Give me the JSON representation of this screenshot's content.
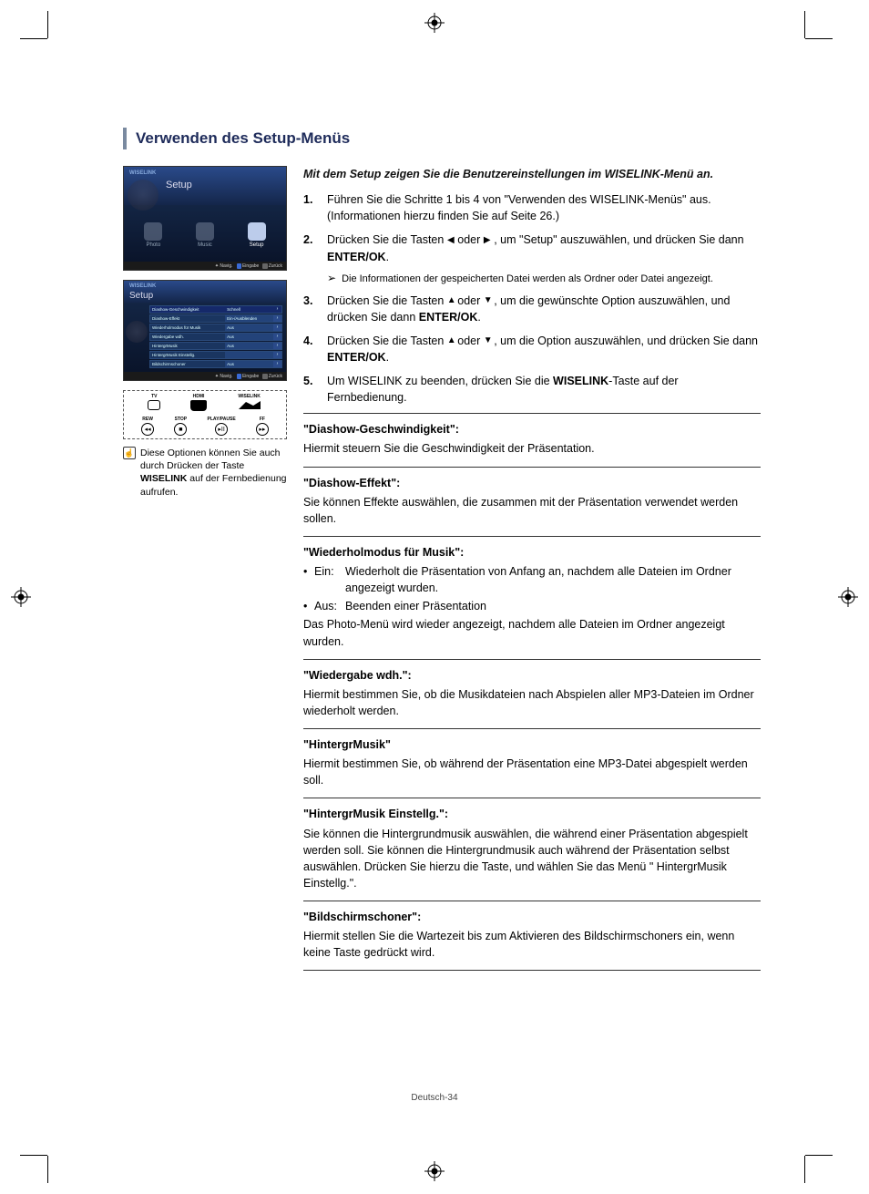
{
  "layout": {
    "crop_color": "#000000",
    "accent_color": "#7a8aa0",
    "title_color": "#1e2b5a"
  },
  "page": {
    "title": "Verwenden des Setup-Menüs",
    "footer": "Deutsch-34"
  },
  "screenshots": {
    "brand": "WISELINK",
    "ss1": {
      "header": "Setup",
      "icons": [
        "Photo",
        "Music",
        "Setup"
      ],
      "footer": [
        "Navig.",
        "Eingabe",
        "Zurück"
      ]
    },
    "ss2": {
      "header": "Setup",
      "rows": [
        {
          "l": "Diashow-Geschwindigkeit",
          "v": "Schnell"
        },
        {
          "l": "Diashow-Effekt",
          "v": "Ein-/Ausblenden"
        },
        {
          "l": "Wiederholmodus für Musik",
          "v": "Aus"
        },
        {
          "l": "Wiedergabe wdh.",
          "v": "Aus"
        },
        {
          "l": "HintergrMusik",
          "v": "Aus"
        },
        {
          "l": "HintergrMusik Einstellg.",
          "v": ""
        },
        {
          "l": "Bildschirmschoner",
          "v": "Aus"
        }
      ],
      "footer": [
        "Navig.",
        "Eingabe",
        "Zurück"
      ]
    }
  },
  "remote": {
    "row1": [
      "TV",
      "HDMI",
      "WISELINK"
    ],
    "row2": [
      {
        "l": "REW",
        "g": "◂◂"
      },
      {
        "l": "STOP",
        "g": "■"
      },
      {
        "l": "PLAY/PAUSE",
        "g": "▸II"
      },
      {
        "l": "FF",
        "g": "▸▸"
      }
    ]
  },
  "note": {
    "text_pre": "Diese Optionen können Sie auch durch Drücken der Taste ",
    "bold": "WISELINK",
    "text_post": " auf der Fernbedienung aufrufen."
  },
  "intro": "Mit dem Setup zeigen Sie die Benutzereinstellungen im WISELINK-Menü an.",
  "steps": [
    {
      "num": "1.",
      "parts": [
        {
          "t": "text",
          "v": "Führen Sie die Schritte 1 bis 4 von \"Verwenden des WISELINK-Menüs\" aus. (Informationen hierzu finden Sie auf Seite 26.)"
        }
      ]
    },
    {
      "num": "2.",
      "parts": [
        {
          "t": "text",
          "v": "Drücken Sie die Tasten "
        },
        {
          "t": "arrow",
          "v": "◀"
        },
        {
          "t": "text",
          "v": " oder "
        },
        {
          "t": "arrow",
          "v": "▶"
        },
        {
          "t": "text",
          "v": " , um \"Setup\" auszuwählen, und drücken Sie dann "
        },
        {
          "t": "bold",
          "v": "ENTER/OK"
        },
        {
          "t": "text",
          "v": "."
        }
      ],
      "subnote": "Die Informationen der gespeicherten Datei werden als Ordner oder Datei angezeigt."
    },
    {
      "num": "3.",
      "parts": [
        {
          "t": "text",
          "v": "Drücken Sie die Tasten "
        },
        {
          "t": "arrow",
          "v": "▲"
        },
        {
          "t": "text",
          "v": " oder "
        },
        {
          "t": "arrow",
          "v": "▼"
        },
        {
          "t": "text",
          "v": " , um die gewünschte Option auszuwählen, und drücken Sie dann "
        },
        {
          "t": "bold",
          "v": "ENTER/OK"
        },
        {
          "t": "text",
          "v": "."
        }
      ]
    },
    {
      "num": "4.",
      "parts": [
        {
          "t": "text",
          "v": "Drücken Sie die Tasten "
        },
        {
          "t": "arrow",
          "v": "▲"
        },
        {
          "t": "text",
          "v": " oder "
        },
        {
          "t": "arrow",
          "v": "▼"
        },
        {
          "t": "text",
          "v": " , um die Option auszuwählen, und drücken Sie dann "
        },
        {
          "t": "bold",
          "v": "ENTER/OK"
        },
        {
          "t": "text",
          "v": "."
        }
      ]
    },
    {
      "num": "5.",
      "parts": [
        {
          "t": "text",
          "v": "Um WISELINK zu beenden, drücken Sie die "
        },
        {
          "t": "bold",
          "v": "WISELINK"
        },
        {
          "t": "text",
          "v": "-Taste auf der Fernbedienung."
        }
      ]
    }
  ],
  "sections": [
    {
      "heading": "\"Diashow-Geschwindigkeit\":",
      "body": [
        {
          "t": "p",
          "v": "Hiermit steuern Sie die Geschwindigkeit der Präsentation."
        }
      ]
    },
    {
      "heading": "\"Diashow-Effekt\":",
      "body": [
        {
          "t": "p",
          "v": "Sie können Effekte auswählen, die zusammen mit der Präsentation verwendet werden sollen."
        }
      ]
    },
    {
      "heading": "\"Wiederholmodus für Musik\":",
      "body": [
        {
          "t": "bullet",
          "label": "Ein:",
          "v": "Wiederholt die Präsentation von Anfang an, nachdem alle Dateien im Ordner angezeigt wurden."
        },
        {
          "t": "bullet",
          "label": "Aus:",
          "v": "Beenden einer Präsentation"
        },
        {
          "t": "p",
          "v": "Das Photo-Menü wird wieder angezeigt, nachdem alle Dateien im Ordner angezeigt wurden."
        }
      ]
    },
    {
      "heading": "\"Wiedergabe wdh.\":",
      "body": [
        {
          "t": "p",
          "v": "Hiermit bestimmen Sie, ob die Musikdateien nach Abspielen aller MP3-Dateien im Ordner wiederholt werden."
        }
      ]
    },
    {
      "heading": "\"HintergrMusik\"",
      "body": [
        {
          "t": "p",
          "v": "Hiermit bestimmen Sie, ob während der Präsentation eine MP3-Datei abgespielt werden soll."
        }
      ]
    },
    {
      "heading": "\"HintergrMusik Einstellg.\":",
      "body": [
        {
          "t": "p",
          "v": "Sie können die Hintergrundmusik auswählen, die während einer Präsentation abgespielt werden soll. Sie können die Hintergrundmusik auch während der Präsentation selbst auswählen. Drücken Sie hierzu die Taste, und wählen Sie das Menü \" HintergrMusik Einstellg.\"."
        }
      ]
    },
    {
      "heading": "\"Bildschirmschoner\":",
      "body": [
        {
          "t": "p",
          "v": "Hiermit stellen Sie die Wartezeit bis zum Aktivieren des Bildschirmschoners ein, wenn keine Taste gedrückt wird."
        }
      ]
    }
  ]
}
